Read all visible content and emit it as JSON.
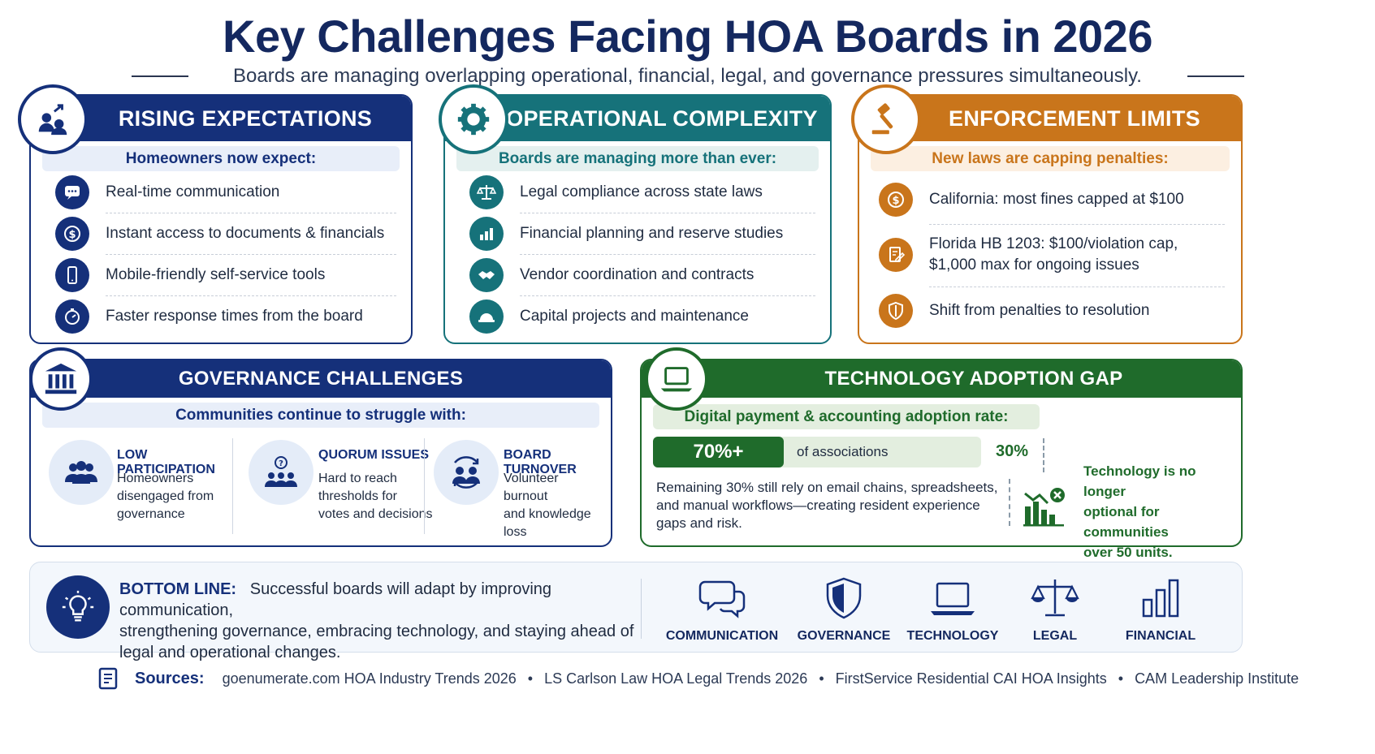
{
  "title": "Key Challenges Facing HOA Boards in 2026",
  "subtitle": "Boards are managing overlapping operational, financial, legal, and governance pressures simultaneously.",
  "rising": {
    "header": "RISING EXPECTATIONS",
    "banner": "Homeowners now expect:",
    "items": [
      "Real-time communication",
      "Instant access to documents & financials",
      "Mobile-friendly self-service tools",
      "Faster response times from the board"
    ]
  },
  "operational": {
    "header": "OPERATIONAL COMPLEXITY",
    "banner": "Boards are managing more than ever:",
    "items": [
      "Legal compliance across state laws",
      "Financial planning and reserve studies",
      "Vendor coordination and contracts",
      "Capital projects and maintenance"
    ]
  },
  "enforcement": {
    "header": "ENFORCEMENT LIMITS",
    "banner": "New laws are capping penalties:",
    "items": [
      "California: most fines capped at  $100",
      "Florida HB 1203:  $100/violation cap,",
      "$1,000 max for ongoing issues",
      "Shift from penalties to resolution"
    ]
  },
  "governance": {
    "header": "GOVERNANCE CHALLENGES",
    "banner": "Communities continue to struggle with:",
    "cols": [
      {
        "title": "LOW PARTICIPATION",
        "lines": [
          "Homeowners",
          "disengaged from",
          "governance"
        ]
      },
      {
        "title": "QUORUM ISSUES",
        "lines": [
          "Hard to reach",
          "thresholds for",
          "votes and decisions"
        ]
      },
      {
        "title": "BOARD TURNOVER",
        "lines": [
          "Volunteer burnout",
          "and knowledge",
          "loss"
        ]
      }
    ]
  },
  "technology": {
    "header": "TECHNOLOGY ADOPTION GAP",
    "banner": "Digital payment & accounting adoption rate:",
    "adopted_label": "70%+",
    "adopted_fraction": 0.7,
    "of_label": "of associations",
    "remaining_label": "30%",
    "remaining_lines": [
      "Remaining 30% still rely on email chains, spreadsheets,",
      "and manual workflows—creating resident experience",
      "gaps and risk."
    ],
    "callout_lines": [
      "Technology is no longer",
      "optional for communities",
      "over 50 units."
    ]
  },
  "bottom_line": {
    "label": "BOTTOM LINE:",
    "lines": [
      "Successful boards will adapt by improving communication,",
      "strengthening governance, embracing technology, and staying ahead of",
      "legal and operational changes."
    ],
    "pillars": [
      "COMMUNICATION",
      "GOVERNANCE",
      "TECHNOLOGY",
      "LEGAL",
      "FINANCIAL"
    ]
  },
  "sources": {
    "label": "Sources:",
    "items": [
      "goenumerate.com HOA Industry Trends 2026",
      "LS Carlson Law HOA Legal Trends 2026",
      "FirstService Residential CAI HOA Insights",
      "CAM Leadership Institute"
    ],
    "separator": "•"
  },
  "colors": {
    "navy": "#15307a",
    "teal": "#16727a",
    "orange": "#c9751b",
    "green": "#1f6b2b"
  }
}
